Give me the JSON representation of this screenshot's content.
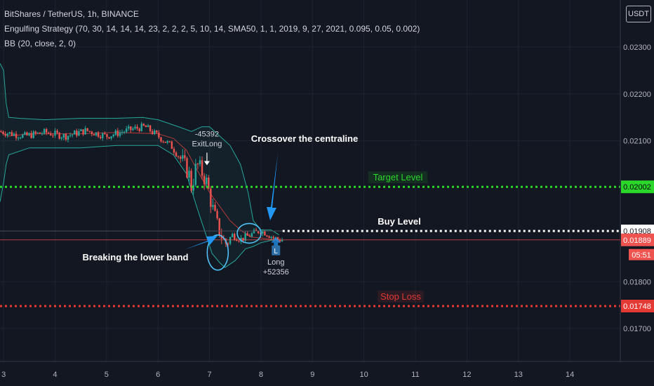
{
  "header": {
    "symbol_line": "BitShares / TetherUS, 1h, BINANCE",
    "strategy_line": "Engulfing Strategy (70, 30, 14, 14, 14, 23, 2, 2, 2, 5, 10, 14, SMA50, 1, 1, 2019, 9, 27, 2021, 0.095, 0.05, 0.002)",
    "bb_line": "BB (20, close, 2, 0)",
    "currency_button": "USDT"
  },
  "colors": {
    "background": "#131722",
    "up_candle": "#26a69a",
    "down_candle": "#ef5350",
    "bb_band": "#26a69a",
    "bb_basis": "#b23a3a",
    "target": "#2bd72b",
    "stop": "#e53935",
    "buy": "#ffffff",
    "annotation_arrow": "#2196f3"
  },
  "chart_data": {
    "type": "candlestick",
    "y_axis": {
      "ticks": [
        "0.02300",
        "0.02200",
        "0.02100",
        "0.01800",
        "0.01700"
      ],
      "range": [
        0.0163,
        0.024
      ]
    },
    "x_axis": {
      "ticks": [
        "3",
        "4",
        "5",
        "6",
        "7",
        "8",
        "9",
        "10",
        "11",
        "12",
        "13",
        "14"
      ],
      "range": [
        2.93,
        14.98
      ]
    },
    "price_levels": [
      {
        "name": "target",
        "label": "Target Level",
        "value": 0.02002,
        "axis_label": "0.02002"
      },
      {
        "name": "buy",
        "label": "Buy Level",
        "value": 0.01908,
        "axis_label": "0.01908"
      },
      {
        "name": "stop",
        "label": "Stop Loss",
        "value": 0.01748,
        "axis_label": "0.01748"
      }
    ],
    "last_price": {
      "value": 0.01889,
      "axis_label": "0.01889",
      "countdown": "05:51"
    },
    "trades": [
      {
        "label": "ExitLong",
        "value": "-45392",
        "x": 6.95
      },
      {
        "label": "Long",
        "value": "+52356",
        "marker": "L",
        "x": 8.29
      }
    ],
    "annotations": [
      {
        "text": "Crossover the centraline"
      },
      {
        "text": "Breaking the lower band"
      }
    ],
    "bollinger_upper": [
      [
        2.93,
        0.02265
      ],
      [
        3.0,
        0.0225
      ],
      [
        3.05,
        0.0218
      ],
      [
        3.1,
        0.0215
      ],
      [
        3.3,
        0.02148
      ],
      [
        3.8,
        0.02145
      ],
      [
        4.5,
        0.02148
      ],
      [
        5.2,
        0.02148
      ],
      [
        5.7,
        0.0215
      ],
      [
        6.0,
        0.02145
      ],
      [
        6.4,
        0.0213
      ],
      [
        6.65,
        0.0212
      ],
      [
        6.85,
        0.0213
      ],
      [
        7.0,
        0.0213
      ],
      [
        7.2,
        0.0211
      ],
      [
        7.4,
        0.0209
      ],
      [
        7.6,
        0.0205
      ],
      [
        7.75,
        0.0199
      ],
      [
        7.85,
        0.0193
      ],
      [
        8.0,
        0.0191
      ],
      [
        8.2,
        0.0191
      ],
      [
        8.35,
        0.019
      ]
    ],
    "bollinger_lower": [
      [
        2.93,
        0.0197
      ],
      [
        3.0,
        0.0201
      ],
      [
        3.05,
        0.0205
      ],
      [
        3.1,
        0.0207
      ],
      [
        3.5,
        0.02085
      ],
      [
        4.5,
        0.02085
      ],
      [
        5.2,
        0.0209
      ],
      [
        6.0,
        0.0209
      ],
      [
        6.3,
        0.0207
      ],
      [
        6.55,
        0.0203
      ],
      [
        6.75,
        0.0196
      ],
      [
        6.9,
        0.0191
      ],
      [
        7.05,
        0.0186
      ],
      [
        7.2,
        0.0184
      ],
      [
        7.3,
        0.0183
      ],
      [
        7.5,
        0.01845
      ],
      [
        7.7,
        0.0187
      ],
      [
        7.85,
        0.01875
      ],
      [
        8.0,
        0.01883
      ],
      [
        8.2,
        0.01888
      ],
      [
        8.35,
        0.0189
      ]
    ],
    "bollinger_basis": [
      [
        2.93,
        0.0212
      ],
      [
        3.1,
        0.0211
      ],
      [
        3.5,
        0.02115
      ],
      [
        4.5,
        0.02115
      ],
      [
        5.2,
        0.02118
      ],
      [
        6.0,
        0.02115
      ],
      [
        6.3,
        0.02105
      ],
      [
        6.55,
        0.0208
      ],
      [
        6.8,
        0.0203
      ],
      [
        7.0,
        0.0199
      ],
      [
        7.2,
        0.0196
      ],
      [
        7.4,
        0.0193
      ],
      [
        7.6,
        0.0191
      ],
      [
        7.8,
        0.01895
      ],
      [
        8.0,
        0.01893
      ],
      [
        8.2,
        0.0189
      ],
      [
        8.35,
        0.01895
      ]
    ],
    "close_path": [
      [
        2.93,
        0.0212
      ],
      [
        3.4,
        0.0211
      ],
      [
        3.8,
        0.02118
      ],
      [
        4.2,
        0.0211
      ],
      [
        4.6,
        0.02122
      ],
      [
        5.0,
        0.0211
      ],
      [
        5.5,
        0.02125
      ],
      [
        5.75,
        0.0213
      ],
      [
        6.0,
        0.0211
      ],
      [
        6.25,
        0.0209
      ],
      [
        6.45,
        0.0206
      ],
      [
        6.6,
        0.0203
      ],
      [
        6.65,
        0.02
      ],
      [
        6.75,
        0.0205
      ],
      [
        6.82,
        0.0204
      ],
      [
        6.95,
        0.0201
      ],
      [
        7.05,
        0.0196
      ],
      [
        7.15,
        0.0192
      ],
      [
        7.3,
        0.0188
      ],
      [
        7.45,
        0.019
      ],
      [
        7.6,
        0.0189
      ],
      [
        7.8,
        0.019
      ],
      [
        8.0,
        0.0191
      ],
      [
        8.15,
        0.019
      ],
      [
        8.3,
        0.0189
      ],
      [
        8.42,
        0.01889
      ]
    ]
  }
}
